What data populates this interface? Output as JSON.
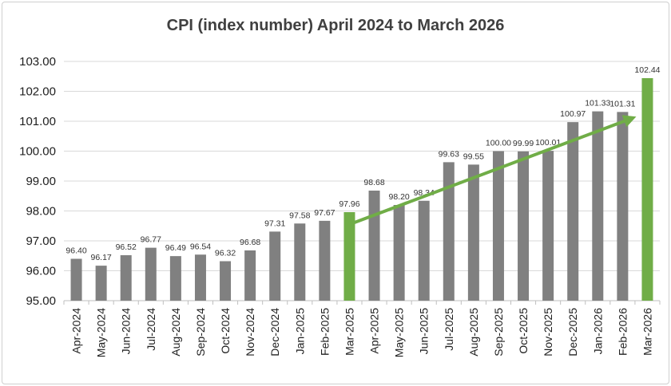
{
  "chart_data": {
    "type": "bar",
    "title": "CPI (index number) April 2024 to March 2026",
    "xlabel": "",
    "ylabel": "",
    "ylim": [
      95.0,
      103.0
    ],
    "yticks": [
      "95.00",
      "96.00",
      "97.00",
      "98.00",
      "99.00",
      "100.00",
      "101.00",
      "102.00",
      "103.00"
    ],
    "grid": true,
    "categories": [
      "Apr-2024",
      "May-2024",
      "Jun-2024",
      "Jul-2024",
      "Aug-2024",
      "Sep-2024",
      "Oct-2024",
      "Nov-2024",
      "Dec-2024",
      "Jan-2025",
      "Feb-2025",
      "Mar-2025",
      "Apr-2025",
      "May-2025",
      "Jun-2025",
      "Jul-2025",
      "Aug-2025",
      "Sep-2025",
      "Oct-2025",
      "Nov-2025",
      "Dec-2025",
      "Jan-2026",
      "Feb-2026",
      "Mar-2026"
    ],
    "values": [
      96.4,
      96.17,
      96.52,
      96.77,
      96.49,
      96.54,
      96.32,
      96.68,
      97.31,
      97.58,
      97.67,
      97.96,
      98.68,
      98.2,
      98.34,
      99.63,
      99.55,
      100.0,
      99.99,
      100.01,
      100.97,
      101.33,
      101.31,
      102.44
    ],
    "value_labels": [
      "96.40",
      "96.17",
      "96.52",
      "96.77",
      "96.49",
      "96.54",
      "96.32",
      "96.68",
      "97.31",
      "97.58",
      "97.67",
      "97.96",
      "98.68",
      "98.20",
      "98.34",
      "99.63",
      "99.55",
      "100.00",
      "99.99",
      "100.01",
      "100.97",
      "101.33",
      "101.31",
      "102.44"
    ],
    "highlighted_categories": [
      "Mar-2025",
      "Mar-2026"
    ],
    "trend_arrow": {
      "from_category": "Mar-2025",
      "from_value": 97.55,
      "to_category": "Feb-2026",
      "to_value": 101.1
    },
    "colors": {
      "bar": "#808080",
      "highlight": "#70ad47",
      "arrow": "#70ad47",
      "grid": "#d9d9d9",
      "axis": "#bfbfbf"
    }
  }
}
